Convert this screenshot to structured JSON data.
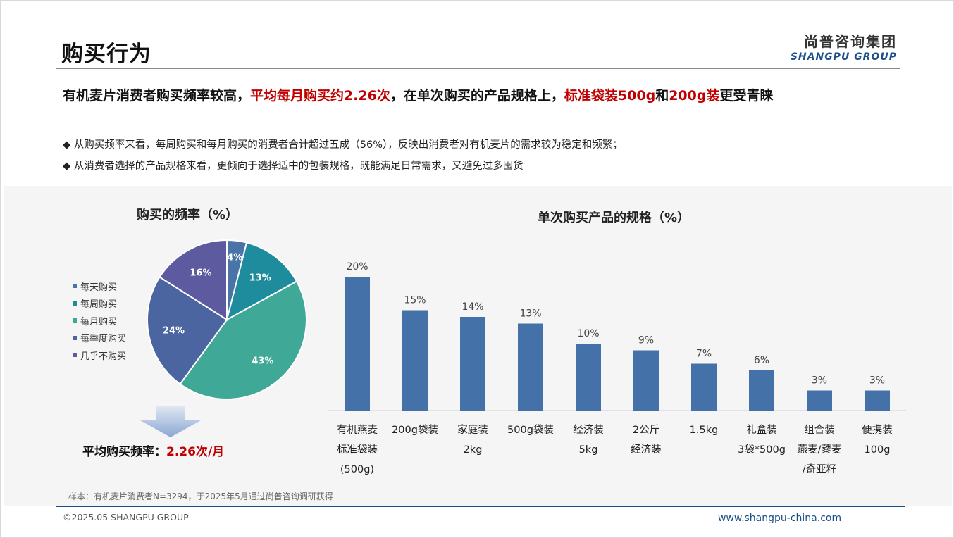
{
  "page": {
    "title": "购买行为",
    "logo_cn": "尚普咨询集团",
    "logo_en": "SHANGPU GROUP",
    "headline_parts": [
      "有机麦片消费者购买频率较高，",
      "平均每月购买约2.26次",
      "，在单次购买的产品规格上，",
      "标准袋装500g",
      "和",
      "200g装",
      "更受青睐"
    ],
    "bullets": [
      "◆ 从购买频率来看，每周购买和每月购买的消费者合计超过五成（56%），反映出消费者对有机麦片的需求较为稳定和频繁；",
      "◆ 从消费者选择的产品规格来看，更倾向于选择适中的包装规格，既能满足日常需求，又避免过多囤货"
    ],
    "avg_label": "平均购买频率：",
    "avg_value": "2.26次/月",
    "note": "样本：有机麦片消费者N=3294，于2025年5月通过尚普咨询调研获得",
    "copyright": "©2025.05 SHANGPU GROUP",
    "website": "www.shangpu-china.com",
    "colors": {
      "accent_red": "#c00000",
      "brand_blue": "#1a4f8a"
    }
  },
  "chart_data": [
    {
      "type": "pie",
      "title": "购买的频率（%）",
      "labels": [
        "每天购买",
        "每周购买",
        "每月购买",
        "每季度购买",
        "几乎不购买"
      ],
      "values": [
        4,
        13,
        43,
        24,
        16
      ],
      "data_labels": [
        "4%",
        "13%",
        "43%",
        "24%",
        "16%"
      ],
      "colors": [
        "#4a74a8",
        "#1e8c9c",
        "#40a896",
        "#4a65a0",
        "#5e5aa0"
      ],
      "legend": "left"
    },
    {
      "type": "bar",
      "title": "单次购买产品的规格（%）",
      "categories": [
        [
          "有机燕麦",
          "标准袋装",
          "(500g)"
        ],
        [
          "200g袋装"
        ],
        [
          "家庭装",
          "2kg"
        ],
        [
          "500g袋装"
        ],
        [
          "经济装",
          "5kg"
        ],
        [
          "2公斤",
          "经济装"
        ],
        [
          "1.5kg"
        ],
        [
          "礼盒装",
          "3袋*500g"
        ],
        [
          "组合装",
          "燕麦/藜麦",
          "/奇亚籽"
        ],
        [
          "便携装",
          "100g"
        ]
      ],
      "values": [
        20,
        15,
        14,
        13,
        10,
        9,
        7,
        6,
        3,
        3
      ],
      "data_labels": [
        "20%",
        "15%",
        "14%",
        "13%",
        "10%",
        "9%",
        "7%",
        "6%",
        "3%",
        "3%"
      ],
      "color": "#4472a8",
      "ylim": [
        0,
        20
      ]
    }
  ]
}
